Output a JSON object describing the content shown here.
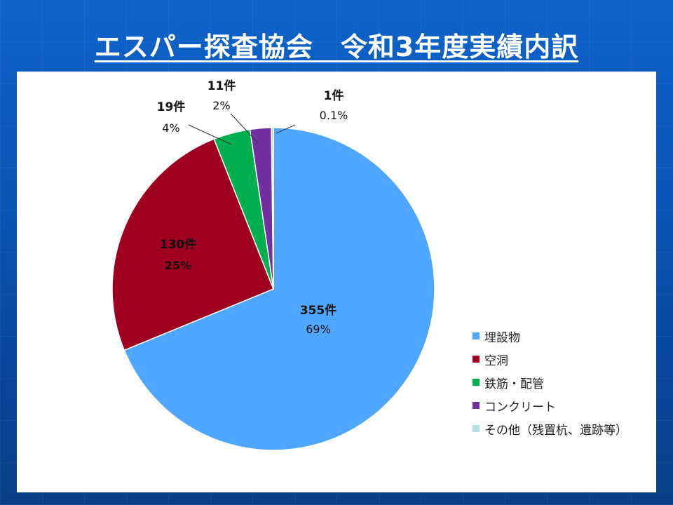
{
  "page": {
    "title": "エスパー探査協会　令和3年度実績内訳"
  },
  "colors": {
    "background": "#0b57b8",
    "panel": "#ffffff",
    "text": "#222222"
  },
  "chart_data": {
    "type": "pie",
    "title": "",
    "categories": [
      "埋設物",
      "空洞",
      "鉄筋・配管",
      "コンクリート",
      "その他（残置杭、遺跡等）"
    ],
    "values": [
      355,
      130,
      19,
      11,
      1
    ],
    "data_labels": [
      {
        "count": "355件",
        "percent": "69%"
      },
      {
        "count": "130件",
        "percent": "25%"
      },
      {
        "count": "19件",
        "percent": "4%"
      },
      {
        "count": "11件",
        "percent": "2%"
      },
      {
        "count": "1件",
        "percent": "0.1%"
      }
    ],
    "colors": [
      "#4ea6ff",
      "#a00020",
      "#00b050",
      "#7030a0",
      "#b5e0e3"
    ],
    "legend_position": "right",
    "start_angle_deg": 0,
    "direction": "clockwise"
  }
}
